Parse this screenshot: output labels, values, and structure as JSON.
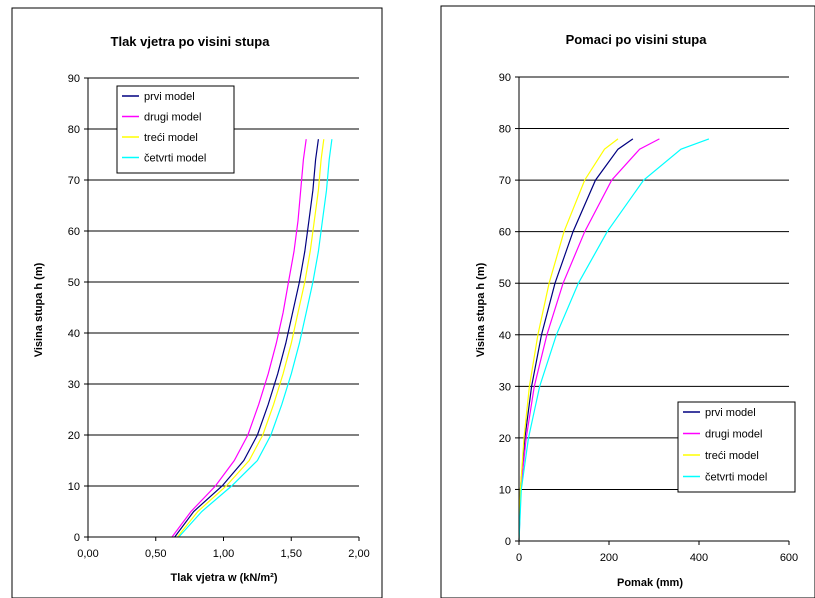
{
  "chart_data": [
    {
      "type": "line",
      "title": "Tlak vjetra po visini stupa",
      "xlabel": "Tlak vjetra  w (kN/m²)",
      "ylabel": "Visina stupa h (m)",
      "xlim": [
        0,
        2
      ],
      "ylim": [
        0,
        90
      ],
      "x_ticks": [
        "0,00",
        "0,50",
        "1,00",
        "1,50",
        "2,00"
      ],
      "y_ticks": [
        "0",
        "10",
        "20",
        "30",
        "40",
        "50",
        "60",
        "70",
        "80",
        "90"
      ],
      "grid": "horizontal",
      "legend_position": "top-left",
      "series": [
        {
          "name": "prvi model",
          "color": "#000080",
          "points": [
            [
              0.64,
              0
            ],
            [
              0.78,
              5
            ],
            [
              0.99,
              10
            ],
            [
              1.15,
              15
            ],
            [
              1.25,
              20
            ],
            [
              1.33,
              26
            ],
            [
              1.4,
              32
            ],
            [
              1.46,
              38
            ],
            [
              1.51,
              44
            ],
            [
              1.56,
              50
            ],
            [
              1.6,
              56
            ],
            [
              1.63,
              62
            ],
            [
              1.66,
              68
            ],
            [
              1.68,
              74
            ],
            [
              1.7,
              78
            ]
          ]
        },
        {
          "name": "drugi model",
          "color": "#FF00FF",
          "points": [
            [
              0.62,
              0
            ],
            [
              0.76,
              5
            ],
            [
              0.94,
              10
            ],
            [
              1.08,
              15
            ],
            [
              1.18,
              20
            ],
            [
              1.26,
              26
            ],
            [
              1.33,
              32
            ],
            [
              1.39,
              38
            ],
            [
              1.44,
              44
            ],
            [
              1.48,
              50
            ],
            [
              1.52,
              56
            ],
            [
              1.55,
              62
            ],
            [
              1.57,
              68
            ],
            [
              1.59,
              74
            ],
            [
              1.61,
              78
            ]
          ]
        },
        {
          "name": "treći model",
          "color": "#FFFF00",
          "points": [
            [
              0.66,
              0
            ],
            [
              0.81,
              5
            ],
            [
              1.02,
              10
            ],
            [
              1.19,
              15
            ],
            [
              1.29,
              20
            ],
            [
              1.37,
              26
            ],
            [
              1.44,
              32
            ],
            [
              1.5,
              38
            ],
            [
              1.55,
              44
            ],
            [
              1.6,
              50
            ],
            [
              1.64,
              56
            ],
            [
              1.67,
              62
            ],
            [
              1.7,
              68
            ],
            [
              1.72,
              74
            ],
            [
              1.74,
              78
            ]
          ]
        },
        {
          "name": "četvrti model",
          "color": "#00FFFF",
          "points": [
            [
              0.67,
              0
            ],
            [
              0.84,
              5
            ],
            [
              1.06,
              10
            ],
            [
              1.25,
              15
            ],
            [
              1.35,
              20
            ],
            [
              1.43,
              26
            ],
            [
              1.5,
              32
            ],
            [
              1.56,
              38
            ],
            [
              1.61,
              44
            ],
            [
              1.66,
              50
            ],
            [
              1.7,
              56
            ],
            [
              1.73,
              62
            ],
            [
              1.76,
              68
            ],
            [
              1.78,
              74
            ],
            [
              1.8,
              78
            ]
          ]
        }
      ]
    },
    {
      "type": "line",
      "title": "Pomaci po visini stupa",
      "xlabel": "Pomak (mm)",
      "ylabel": "Visina stupa h (m)",
      "xlim": [
        0,
        600
      ],
      "ylim": [
        0,
        90
      ],
      "x_ticks": [
        "0",
        "200",
        "400",
        "600"
      ],
      "y_ticks": [
        "0",
        "10",
        "20",
        "30",
        "40",
        "50",
        "60",
        "70",
        "80",
        "90"
      ],
      "grid": "horizontal",
      "legend_position": "bottom-right",
      "series": [
        {
          "name": "prvi model",
          "color": "#000080",
          "points": [
            [
              0,
              0
            ],
            [
              3,
              10
            ],
            [
              13,
              20
            ],
            [
              28,
              30
            ],
            [
              50,
              40
            ],
            [
              80,
              50
            ],
            [
              120,
              60
            ],
            [
              170,
              70
            ],
            [
              220,
              76
            ],
            [
              253,
              78
            ]
          ]
        },
        {
          "name": "drugi model",
          "color": "#FF00FF",
          "points": [
            [
              0,
              0
            ],
            [
              4,
              10
            ],
            [
              16,
              20
            ],
            [
              34,
              30
            ],
            [
              62,
              40
            ],
            [
              98,
              50
            ],
            [
              146,
              60
            ],
            [
              206,
              70
            ],
            [
              268,
              76
            ],
            [
              312,
              78
            ]
          ]
        },
        {
          "name": "treći model",
          "color": "#FFFF00",
          "points": [
            [
              0,
              0
            ],
            [
              3,
              10
            ],
            [
              11,
              20
            ],
            [
              23,
              30
            ],
            [
              42,
              40
            ],
            [
              67,
              50
            ],
            [
              100,
              60
            ],
            [
              146,
              70
            ],
            [
              190,
              76
            ],
            [
              220,
              78
            ]
          ]
        },
        {
          "name": "četvrti model",
          "color": "#00FFFF",
          "points": [
            [
              0,
              0
            ],
            [
              5,
              10
            ],
            [
              21,
              20
            ],
            [
              46,
              30
            ],
            [
              83,
              40
            ],
            [
              132,
              50
            ],
            [
              196,
              60
            ],
            [
              277,
              70
            ],
            [
              360,
              76
            ],
            [
              422,
              78
            ]
          ]
        }
      ]
    }
  ]
}
